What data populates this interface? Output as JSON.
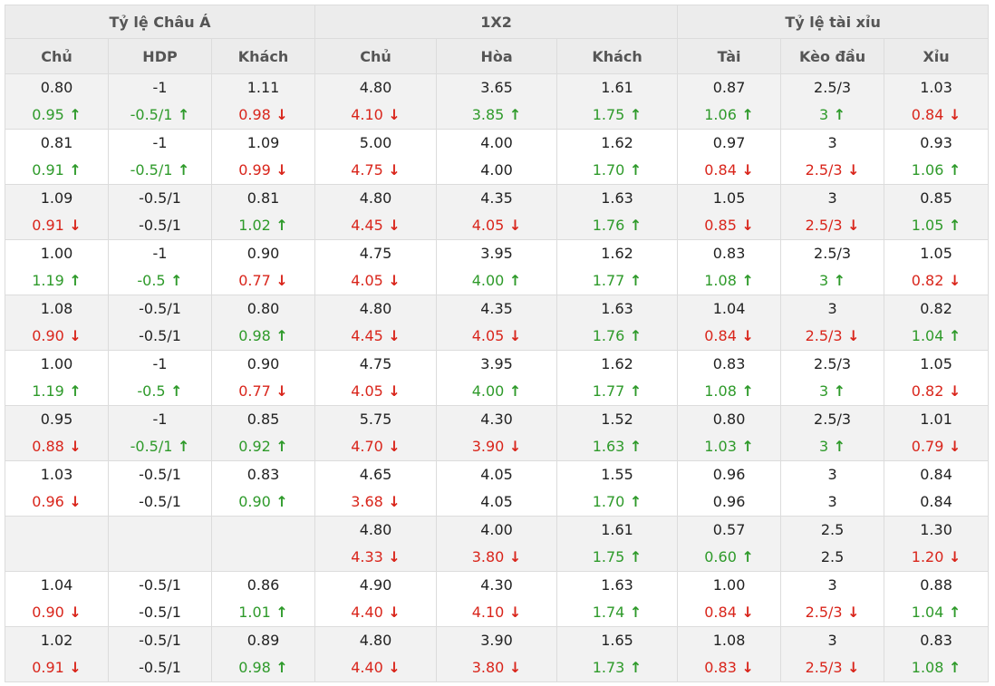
{
  "header": {
    "groups": [
      "Tỷ lệ Châu Á",
      "1X2",
      "Tỷ lệ tài xỉu"
    ],
    "columns": [
      "Chủ",
      "HDP",
      "Khách",
      "Chủ",
      "Hòa",
      "Khách",
      "Tài",
      "Kèo đầu",
      "Xỉu"
    ]
  },
  "colors": {
    "up": "#2e9a2a",
    "down": "#d9251b",
    "header_bg": "#ececec",
    "alt_row_bg": "#f2f2f2"
  },
  "icons": {
    "up": "arrow-up-icon",
    "down": "arrow-down-icon"
  },
  "rows": [
    [
      [
        "0.80",
        [
          "0.95",
          "up"
        ]
      ],
      [
        "-1",
        [
          "-0.5/1",
          "up"
        ]
      ],
      [
        "1.11",
        [
          "0.98",
          "down"
        ]
      ],
      [
        "4.80",
        [
          "4.10",
          "down"
        ]
      ],
      [
        "3.65",
        [
          "3.85",
          "up"
        ]
      ],
      [
        "1.61",
        [
          "1.75",
          "up"
        ]
      ],
      [
        "0.87",
        [
          "1.06",
          "up"
        ]
      ],
      [
        "2.5/3",
        [
          "3",
          "up"
        ]
      ],
      [
        "1.03",
        [
          "0.84",
          "down"
        ]
      ]
    ],
    [
      [
        "0.81",
        [
          "0.91",
          "up"
        ]
      ],
      [
        "-1",
        [
          "-0.5/1",
          "up"
        ]
      ],
      [
        "1.09",
        [
          "0.99",
          "down"
        ]
      ],
      [
        "5.00",
        [
          "4.75",
          "down"
        ]
      ],
      [
        "4.00",
        [
          "4.00",
          ""
        ]
      ],
      [
        "1.62",
        [
          "1.70",
          "up"
        ]
      ],
      [
        "0.97",
        [
          "0.84",
          "down"
        ]
      ],
      [
        "3",
        [
          "2.5/3",
          "down"
        ]
      ],
      [
        "0.93",
        [
          "1.06",
          "up"
        ]
      ]
    ],
    [
      [
        "1.09",
        [
          "0.91",
          "down"
        ]
      ],
      [
        "-0.5/1",
        [
          "-0.5/1",
          ""
        ]
      ],
      [
        "0.81",
        [
          "1.02",
          "up"
        ]
      ],
      [
        "4.80",
        [
          "4.45",
          "down"
        ]
      ],
      [
        "4.35",
        [
          "4.05",
          "down"
        ]
      ],
      [
        "1.63",
        [
          "1.76",
          "up"
        ]
      ],
      [
        "1.05",
        [
          "0.85",
          "down"
        ]
      ],
      [
        "3",
        [
          "2.5/3",
          "down"
        ]
      ],
      [
        "0.85",
        [
          "1.05",
          "up"
        ]
      ]
    ],
    [
      [
        "1.00",
        [
          "1.19",
          "up"
        ]
      ],
      [
        "-1",
        [
          "-0.5",
          "up"
        ]
      ],
      [
        "0.90",
        [
          "0.77",
          "down"
        ]
      ],
      [
        "4.75",
        [
          "4.05",
          "down"
        ]
      ],
      [
        "3.95",
        [
          "4.00",
          "up"
        ]
      ],
      [
        "1.62",
        [
          "1.77",
          "up"
        ]
      ],
      [
        "0.83",
        [
          "1.08",
          "up"
        ]
      ],
      [
        "2.5/3",
        [
          "3",
          "up"
        ]
      ],
      [
        "1.05",
        [
          "0.82",
          "down"
        ]
      ]
    ],
    [
      [
        "1.08",
        [
          "0.90",
          "down"
        ]
      ],
      [
        "-0.5/1",
        [
          "-0.5/1",
          ""
        ]
      ],
      [
        "0.80",
        [
          "0.98",
          "up"
        ]
      ],
      [
        "4.80",
        [
          "4.45",
          "down"
        ]
      ],
      [
        "4.35",
        [
          "4.05",
          "down"
        ]
      ],
      [
        "1.63",
        [
          "1.76",
          "up"
        ]
      ],
      [
        "1.04",
        [
          "0.84",
          "down"
        ]
      ],
      [
        "3",
        [
          "2.5/3",
          "down"
        ]
      ],
      [
        "0.82",
        [
          "1.04",
          "up"
        ]
      ]
    ],
    [
      [
        "1.00",
        [
          "1.19",
          "up"
        ]
      ],
      [
        "-1",
        [
          "-0.5",
          "up"
        ]
      ],
      [
        "0.90",
        [
          "0.77",
          "down"
        ]
      ],
      [
        "4.75",
        [
          "4.05",
          "down"
        ]
      ],
      [
        "3.95",
        [
          "4.00",
          "up"
        ]
      ],
      [
        "1.62",
        [
          "1.77",
          "up"
        ]
      ],
      [
        "0.83",
        [
          "1.08",
          "up"
        ]
      ],
      [
        "2.5/3",
        [
          "3",
          "up"
        ]
      ],
      [
        "1.05",
        [
          "0.82",
          "down"
        ]
      ]
    ],
    [
      [
        "0.95",
        [
          "0.88",
          "down"
        ]
      ],
      [
        "-1",
        [
          "-0.5/1",
          "up"
        ]
      ],
      [
        "0.85",
        [
          "0.92",
          "up"
        ]
      ],
      [
        "5.75",
        [
          "4.70",
          "down"
        ]
      ],
      [
        "4.30",
        [
          "3.90",
          "down"
        ]
      ],
      [
        "1.52",
        [
          "1.63",
          "up"
        ]
      ],
      [
        "0.80",
        [
          "1.03",
          "up"
        ]
      ],
      [
        "2.5/3",
        [
          "3",
          "up"
        ]
      ],
      [
        "1.01",
        [
          "0.79",
          "down"
        ]
      ]
    ],
    [
      [
        "1.03",
        [
          "0.96",
          "down"
        ]
      ],
      [
        "-0.5/1",
        [
          "-0.5/1",
          ""
        ]
      ],
      [
        "0.83",
        [
          "0.90",
          "up"
        ]
      ],
      [
        "4.65",
        [
          "3.68",
          "down"
        ]
      ],
      [
        "4.05",
        [
          "4.05",
          ""
        ]
      ],
      [
        "1.55",
        [
          "1.70",
          "up"
        ]
      ],
      [
        "0.96",
        [
          "0.96",
          ""
        ]
      ],
      [
        "3",
        [
          "3",
          ""
        ]
      ],
      [
        "0.84",
        [
          "0.84",
          ""
        ]
      ]
    ],
    [
      [
        "",
        [
          "",
          ""
        ]
      ],
      [
        "",
        [
          "",
          ""
        ]
      ],
      [
        "",
        [
          "",
          ""
        ]
      ],
      [
        "4.80",
        [
          "4.33",
          "down"
        ]
      ],
      [
        "4.00",
        [
          "3.80",
          "down"
        ]
      ],
      [
        "1.61",
        [
          "1.75",
          "up"
        ]
      ],
      [
        "0.57",
        [
          "0.60",
          "up"
        ]
      ],
      [
        "2.5",
        [
          "2.5",
          ""
        ]
      ],
      [
        "1.30",
        [
          "1.20",
          "down"
        ]
      ]
    ],
    [
      [
        "1.04",
        [
          "0.90",
          "down"
        ]
      ],
      [
        "-0.5/1",
        [
          "-0.5/1",
          ""
        ]
      ],
      [
        "0.86",
        [
          "1.01",
          "up"
        ]
      ],
      [
        "4.90",
        [
          "4.40",
          "down"
        ]
      ],
      [
        "4.30",
        [
          "4.10",
          "down"
        ]
      ],
      [
        "1.63",
        [
          "1.74",
          "up"
        ]
      ],
      [
        "1.00",
        [
          "0.84",
          "down"
        ]
      ],
      [
        "3",
        [
          "2.5/3",
          "down"
        ]
      ],
      [
        "0.88",
        [
          "1.04",
          "up"
        ]
      ]
    ],
    [
      [
        "1.02",
        [
          "0.91",
          "down"
        ]
      ],
      [
        "-0.5/1",
        [
          "-0.5/1",
          ""
        ]
      ],
      [
        "0.89",
        [
          "0.98",
          "up"
        ]
      ],
      [
        "4.80",
        [
          "4.40",
          "down"
        ]
      ],
      [
        "3.90",
        [
          "3.80",
          "down"
        ]
      ],
      [
        "1.65",
        [
          "1.73",
          "up"
        ]
      ],
      [
        "1.08",
        [
          "0.83",
          "down"
        ]
      ],
      [
        "3",
        [
          "2.5/3",
          "down"
        ]
      ],
      [
        "0.83",
        [
          "1.08",
          "up"
        ]
      ]
    ]
  ]
}
